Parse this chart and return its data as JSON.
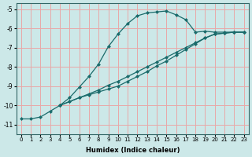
{
  "xlabel": "Humidex (Indice chaleur)",
  "ylabel": "",
  "xlim": [
    -0.5,
    23.5
  ],
  "ylim": [
    -11.5,
    -4.7
  ],
  "bg_color": "#cce8e8",
  "grid_color": "#e8a8a8",
  "line_color": "#1a6b6b",
  "line1_x": [
    0,
    1,
    2,
    3,
    4,
    5,
    6,
    7,
    8,
    9,
    10,
    11,
    12,
    13,
    14,
    15,
    16,
    17,
    18,
    19,
    20,
    21,
    22,
    23
  ],
  "line1_y": [
    -10.7,
    -10.7,
    -10.6,
    -10.3,
    -10.0,
    -9.6,
    -9.05,
    -8.5,
    -7.85,
    -6.95,
    -6.3,
    -5.75,
    -5.35,
    -5.2,
    -5.15,
    -5.1,
    -5.3,
    -5.55,
    -6.2,
    -6.15,
    -6.2,
    -6.2,
    -6.2,
    -6.2
  ],
  "line2_x": [
    4,
    5,
    6,
    7,
    8,
    9,
    10,
    11,
    12,
    13,
    14,
    15,
    16,
    17,
    18,
    19,
    20,
    21,
    22,
    23
  ],
  "line2_y": [
    -10.0,
    -9.8,
    -9.6,
    -9.4,
    -9.2,
    -8.95,
    -8.75,
    -8.5,
    -8.25,
    -8.0,
    -7.75,
    -7.5,
    -7.25,
    -7.0,
    -6.75,
    -6.5,
    -6.3,
    -6.25,
    -6.2,
    -6.2
  ],
  "line3_x": [
    4,
    5,
    6,
    7,
    8,
    9,
    10,
    11,
    12,
    13,
    14,
    15,
    16,
    17,
    18,
    19,
    20,
    21,
    22,
    23
  ],
  "line3_y": [
    -10.0,
    -9.8,
    -9.6,
    -9.45,
    -9.3,
    -9.15,
    -9.0,
    -8.75,
    -8.5,
    -8.25,
    -7.95,
    -7.7,
    -7.4,
    -7.1,
    -6.8,
    -6.5,
    -6.3,
    -6.25,
    -6.2,
    -6.2
  ],
  "xticks": [
    0,
    1,
    2,
    3,
    4,
    5,
    6,
    7,
    8,
    9,
    10,
    11,
    12,
    13,
    14,
    15,
    16,
    17,
    18,
    19,
    20,
    21,
    22,
    23
  ],
  "yticks": [
    -11,
    -10,
    -9,
    -8,
    -7,
    -6,
    -5
  ]
}
